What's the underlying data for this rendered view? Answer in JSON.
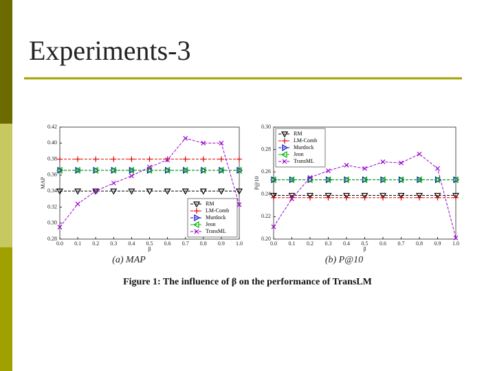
{
  "slide_title": "Experiments-3",
  "caption": "Figure 1: The influence of β on the performance of TransLM",
  "chart_data": [
    {
      "type": "line",
      "subcaption": "(a) MAP",
      "x_label": "β",
      "y_label": "MAP",
      "legend": "lower right",
      "x": [
        0,
        0.1,
        0.2,
        0.3,
        0.4,
        0.5,
        0.6,
        0.7,
        0.8,
        0.9,
        1.0
      ],
      "xlim": [
        0,
        1
      ],
      "xticks": [
        {
          "value": 0,
          "label": "0.0"
        },
        0.1,
        0.2,
        0.3,
        0.4,
        0.5,
        0.6,
        0.7,
        0.8,
        0.9,
        {
          "value": 1,
          "label": "1.0"
        }
      ],
      "ylim": [
        0.28,
        0.42
      ],
      "yticks": [
        0.28,
        {
          "value": 0.3,
          "label": "0.30"
        },
        0.32,
        0.34,
        0.36,
        0.38,
        {
          "value": 0.4,
          "label": "0.40"
        },
        0.42
      ],
      "series": [
        {
          "name": "RM",
          "color": "#000000",
          "marker": "v",
          "values": [
            0.34,
            0.34,
            0.34,
            0.34,
            0.34,
            0.34,
            0.34,
            0.34,
            0.34,
            0.34,
            0.34
          ]
        },
        {
          "name": "LM-Comb",
          "color": "#e00000",
          "marker": "+",
          "values": [
            0.38,
            0.38,
            0.38,
            0.38,
            0.38,
            0.38,
            0.38,
            0.38,
            0.38,
            0.38,
            0.38
          ]
        },
        {
          "name": "Murdock",
          "color": "#0000d0",
          "marker": ">",
          "values": [
            0.366,
            0.366,
            0.366,
            0.366,
            0.366,
            0.366,
            0.366,
            0.366,
            0.366,
            0.366,
            0.366
          ]
        },
        {
          "name": "Jeon",
          "color": "#00b000",
          "marker": "<",
          "values": [
            0.366,
            0.366,
            0.366,
            0.366,
            0.366,
            0.366,
            0.366,
            0.366,
            0.366,
            0.366,
            0.366
          ]
        },
        {
          "name": "TransML",
          "color": "#9a00d0",
          "marker": "x",
          "values": [
            0.295,
            0.324,
            0.34,
            0.35,
            0.359,
            0.37,
            0.379,
            0.406,
            0.4,
            0.4,
            0.323
          ]
        }
      ]
    },
    {
      "type": "line",
      "subcaption": "(b) P@10",
      "x_label": "β",
      "y_label": "P@10",
      "legend": "upper left",
      "x": [
        0,
        0.1,
        0.2,
        0.3,
        0.4,
        0.5,
        0.6,
        0.7,
        0.8,
        0.9,
        1.0
      ],
      "xlim": [
        0,
        1
      ],
      "xticks": [
        {
          "value": 0,
          "label": "0.0"
        },
        0.1,
        0.2,
        0.3,
        0.4,
        0.5,
        0.6,
        0.7,
        0.8,
        0.9,
        {
          "value": 1,
          "label": "1.0"
        }
      ],
      "ylim": [
        0.2,
        0.3
      ],
      "yticks": [
        {
          "value": 0.2,
          "label": "0.20"
        },
        0.22,
        0.24,
        0.26,
        0.28,
        {
          "value": 0.3,
          "label": "0.30"
        }
      ],
      "series": [
        {
          "name": "RM",
          "color": "#000000",
          "marker": "v",
          "values": [
            0.239,
            0.239,
            0.239,
            0.239,
            0.239,
            0.239,
            0.239,
            0.239,
            0.239,
            0.239,
            0.239
          ]
        },
        {
          "name": "LM-Comb",
          "color": "#e00000",
          "marker": "+",
          "values": [
            0.237,
            0.237,
            0.237,
            0.237,
            0.237,
            0.237,
            0.237,
            0.237,
            0.237,
            0.237,
            0.237
          ]
        },
        {
          "name": "Murdock",
          "color": "#0000d0",
          "marker": ">",
          "values": [
            0.253,
            0.253,
            0.253,
            0.253,
            0.253,
            0.253,
            0.253,
            0.253,
            0.253,
            0.253,
            0.253
          ]
        },
        {
          "name": "Jeon",
          "color": "#00b000",
          "marker": "<",
          "values": [
            0.253,
            0.253,
            0.253,
            0.253,
            0.253,
            0.253,
            0.253,
            0.253,
            0.253,
            0.253,
            0.253
          ]
        },
        {
          "name": "TransML",
          "color": "#9a00d0",
          "marker": "x",
          "values": [
            0.211,
            0.236,
            0.255,
            0.261,
            0.266,
            0.263,
            0.269,
            0.268,
            0.276,
            0.263,
            0.201
          ]
        }
      ]
    }
  ]
}
